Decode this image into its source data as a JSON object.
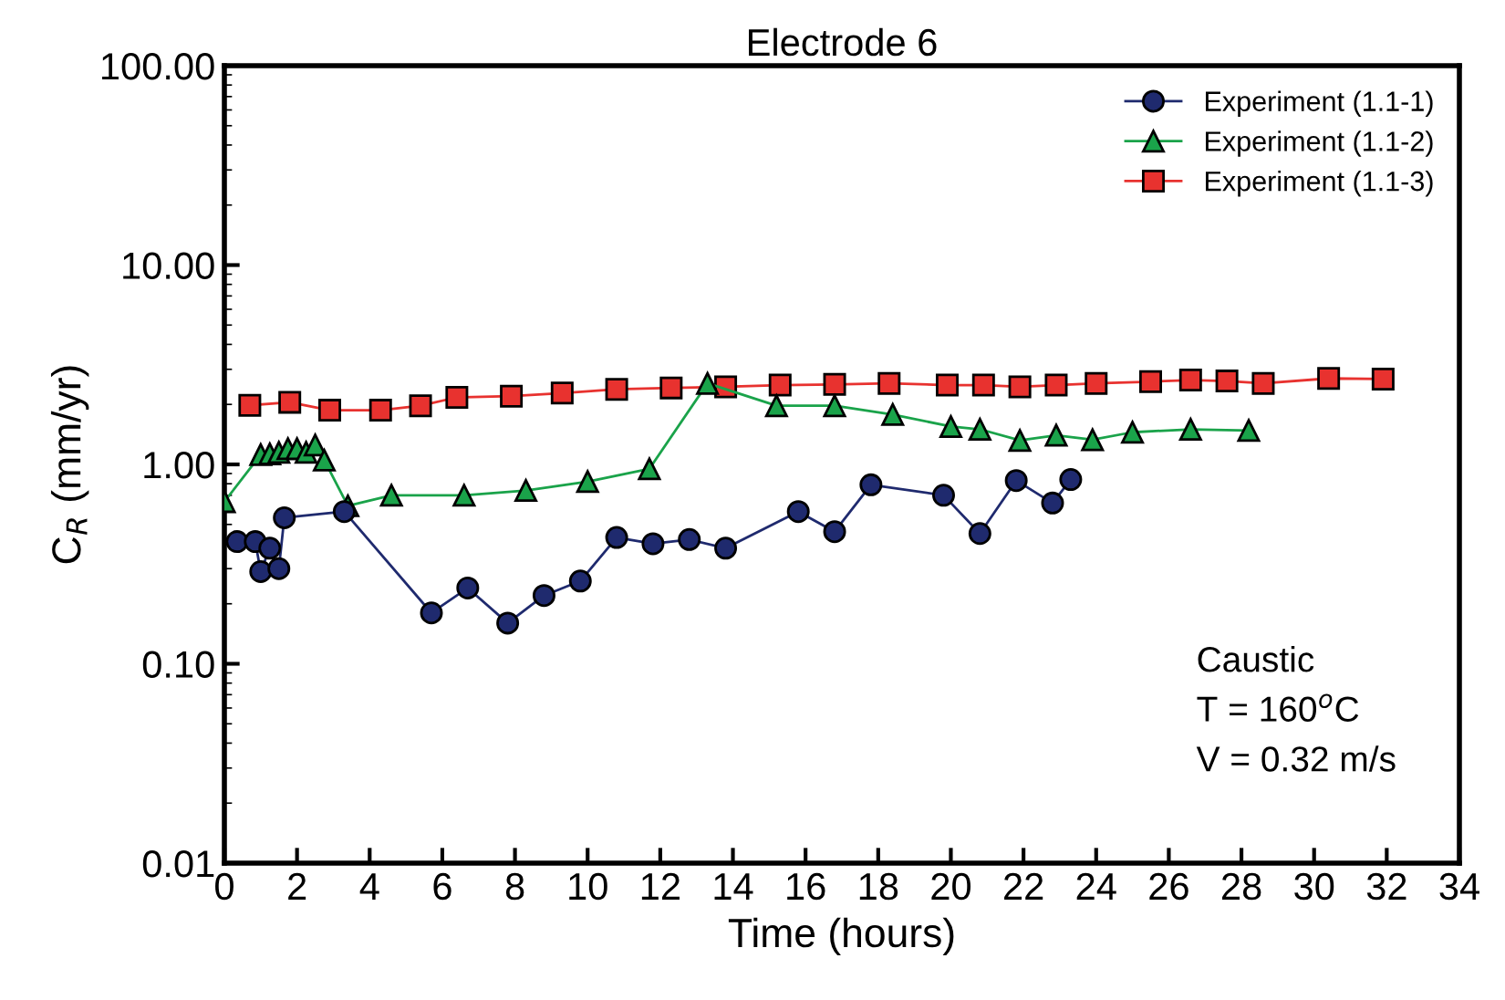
{
  "chart_data": {
    "type": "line",
    "title": "Electrode 6",
    "xlabel": "Time (hours)",
    "ylabel": "C$_{R}$ (mm/yr)",
    "log": "y",
    "xlim": [
      0,
      34
    ],
    "xticks": [
      0,
      2,
      4,
      6,
      8,
      10,
      12,
      14,
      16,
      18,
      20,
      22,
      24,
      26,
      28,
      30,
      32,
      34
    ],
    "ylim": [
      0.01,
      100
    ],
    "yticks": [
      {
        "value": 0.01,
        "label": "0.01"
      },
      {
        "value": 0.1,
        "label": "0.10"
      },
      {
        "value": 1,
        "label": "1.00"
      },
      {
        "value": 10,
        "label": "10.00"
      },
      {
        "value": 100,
        "label": "100.00"
      }
    ],
    "grid": false,
    "legend": "top right",
    "line_style": "solid",
    "annotations": [
      "Caustic",
      "T = 160$^{o}$C",
      "V = 0.32 m/s"
    ],
    "series": [
      {
        "name": "Experiment (1.1-1)",
        "color": "#1f2a6e",
        "marker": "circle",
        "x": [
          0.35,
          0.85,
          1.0,
          1.25,
          1.5,
          1.65,
          3.3,
          5.7,
          6.7,
          7.8,
          8.8,
          9.8,
          10.8,
          11.8,
          12.8,
          13.8,
          15.8,
          16.8,
          17.8,
          19.8,
          20.8,
          21.8,
          22.8,
          23.3
        ],
        "values": [
          0.41,
          0.41,
          0.29,
          0.38,
          0.3,
          0.54,
          0.58,
          0.18,
          0.24,
          0.16,
          0.22,
          0.26,
          0.43,
          0.4,
          0.42,
          0.38,
          0.58,
          0.46,
          0.79,
          0.7,
          0.45,
          0.83,
          0.64,
          0.84
        ]
      },
      {
        "name": "Experiment (1.1-2)",
        "color": "#1aa34a",
        "marker": "triangle",
        "x": [
          0,
          1.0,
          1.25,
          1.5,
          1.75,
          2.0,
          2.25,
          2.5,
          2.75,
          3.4,
          4.6,
          6.6,
          8.3,
          10.0,
          11.7,
          13.3,
          15.2,
          16.8,
          18.4,
          20.0,
          20.8,
          21.9,
          22.9,
          23.9,
          25.0,
          26.6,
          28.2
        ],
        "values": [
          0.65,
          1.12,
          1.13,
          1.15,
          1.2,
          1.2,
          1.15,
          1.25,
          1.05,
          0.62,
          0.7,
          0.7,
          0.74,
          0.82,
          0.95,
          2.55,
          1.97,
          1.97,
          1.78,
          1.55,
          1.5,
          1.32,
          1.4,
          1.33,
          1.45,
          1.5,
          1.48
        ]
      },
      {
        "name": "Experiment (1.1-3)",
        "color": "#e8322f",
        "marker": "square",
        "x": [
          0.7,
          1.8,
          2.9,
          4.3,
          5.4,
          6.4,
          7.9,
          9.3,
          10.8,
          12.3,
          13.8,
          15.3,
          16.8,
          18.3,
          19.9,
          20.9,
          21.9,
          22.9,
          24.0,
          25.5,
          26.6,
          27.6,
          28.6,
          30.4,
          31.9
        ],
        "values": [
          1.98,
          2.05,
          1.87,
          1.87,
          1.97,
          2.17,
          2.2,
          2.28,
          2.38,
          2.42,
          2.45,
          2.5,
          2.52,
          2.55,
          2.5,
          2.5,
          2.45,
          2.5,
          2.55,
          2.6,
          2.65,
          2.62,
          2.55,
          2.7,
          2.68
        ]
      }
    ]
  }
}
